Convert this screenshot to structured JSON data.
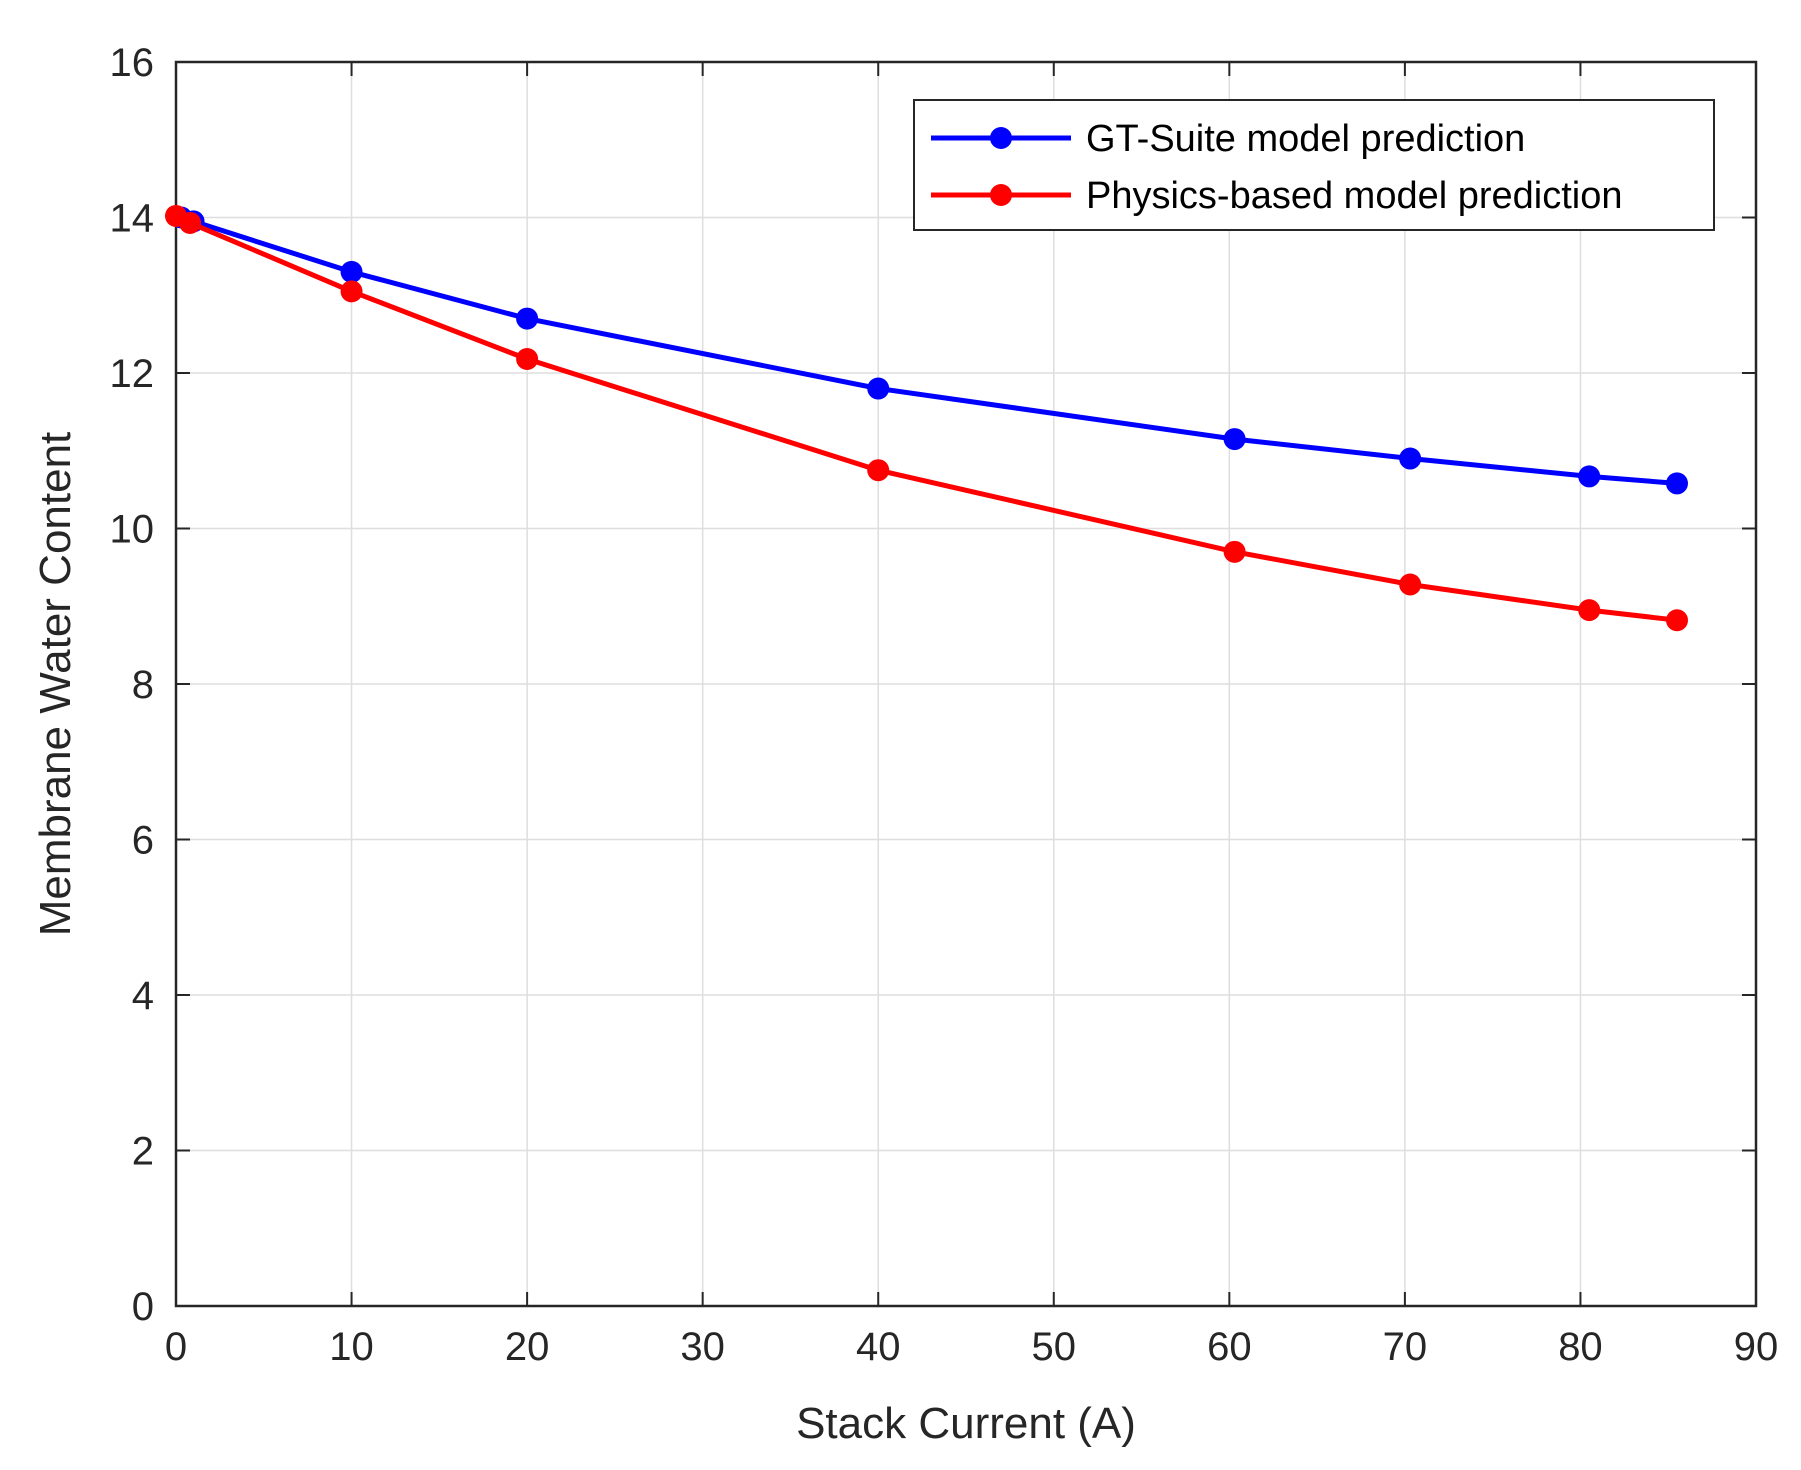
{
  "chart_data": {
    "type": "line",
    "title": "",
    "xlabel": "Stack Current (A)",
    "ylabel": "Membrane Water Content",
    "xlim": [
      0,
      90
    ],
    "ylim": [
      0,
      16
    ],
    "xticks": [
      0,
      10,
      20,
      30,
      40,
      50,
      60,
      70,
      80,
      90
    ],
    "yticks": [
      0,
      2,
      4,
      6,
      8,
      10,
      12,
      14,
      16
    ],
    "grid": true,
    "legend_position": "top-right",
    "series": [
      {
        "name": "GT-Suite model prediction",
        "color": "#0000ff",
        "marker": "circle",
        "x": [
          0.3,
          1,
          10,
          20,
          40,
          60.3,
          70.3,
          80.5,
          85.5
        ],
        "y": [
          14.0,
          13.95,
          13.3,
          12.7,
          11.8,
          11.15,
          10.9,
          10.67,
          10.58
        ]
      },
      {
        "name": "Physics-based model prediction",
        "color": "#ff0000",
        "marker": "circle",
        "x": [
          0,
          0.8,
          10,
          20,
          40,
          60.3,
          70.3,
          80.5,
          85.5
        ],
        "y": [
          14.02,
          13.93,
          13.05,
          12.18,
          10.75,
          9.7,
          9.28,
          8.95,
          8.82
        ]
      }
    ]
  }
}
